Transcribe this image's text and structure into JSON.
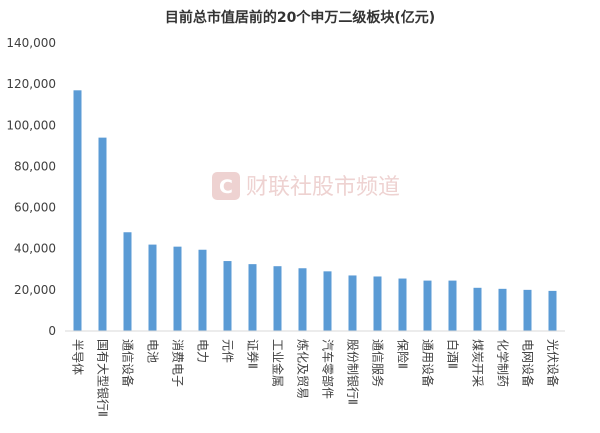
{
  "chart_data": {
    "type": "bar",
    "title": "目前总市值居前的20个申万二级板块(亿元)",
    "xlabel": "",
    "ylabel": "",
    "ylim": [
      0,
      140000
    ],
    "yticks": [
      "0",
      "20,000",
      "40,000",
      "60,000",
      "80,000",
      "100,000",
      "120,000",
      "140,000"
    ],
    "grid": false,
    "bar_color": "#5b9bd5",
    "categories": [
      "半导体",
      "国有大型银行Ⅱ",
      "通信设备",
      "电池",
      "消费电子",
      "电力",
      "元件",
      "证券Ⅱ",
      "工业金属",
      "炼化及贸易",
      "汽车零部件",
      "股份制银行Ⅱ",
      "通信服务",
      "保险Ⅱ",
      "通用设备",
      "白酒Ⅱ",
      "煤炭开采",
      "化学制药",
      "电网设备",
      "光伏设备"
    ],
    "values": [
      117000,
      94000,
      48000,
      42000,
      41000,
      39500,
      34000,
      32500,
      31500,
      30500,
      29000,
      27000,
      26500,
      25500,
      24500,
      24500,
      21000,
      20500,
      20000,
      19500
    ]
  },
  "watermark": {
    "logo_letter": "C",
    "text": "财联社股市频道",
    "color": "#e9c4c2"
  }
}
